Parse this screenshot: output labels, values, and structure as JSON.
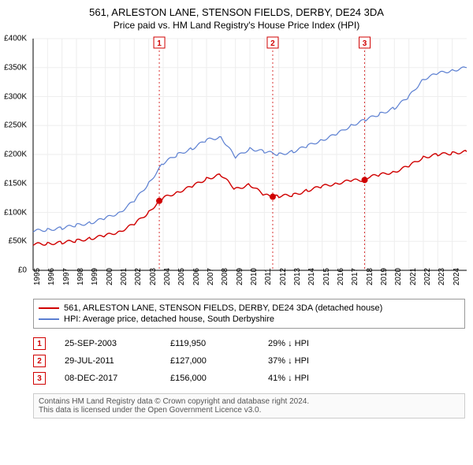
{
  "title_line1": "561, ARLESTON LANE, STENSON FIELDS, DERBY, DE24 3DA",
  "title_line2": "Price paid vs. HM Land Registry's House Price Index (HPI)",
  "chart": {
    "type": "line",
    "background_color": "#ffffff",
    "grid_color": "#eeeeee",
    "axis_color": "#000000",
    "x_min_year": 1995,
    "x_max_year": 2025,
    "x_tick_years": [
      1995,
      1996,
      1997,
      1998,
      1999,
      2000,
      2001,
      2002,
      2003,
      2004,
      2005,
      2006,
      2007,
      2008,
      2009,
      2010,
      2011,
      2012,
      2013,
      2014,
      2015,
      2016,
      2017,
      2018,
      2019,
      2020,
      2021,
      2022,
      2023,
      2024
    ],
    "y_min": 0,
    "y_max": 400000,
    "y_tick_step": 50000,
    "y_tick_labels": [
      "£0",
      "£50K",
      "£100K",
      "£150K",
      "£200K",
      "£250K",
      "£300K",
      "£350K",
      "£400K"
    ],
    "series": [
      {
        "name": "hpi",
        "label": "HPI: Average price, detached house, South Derbyshire",
        "color": "#5b7fd1",
        "line_width": 1.2,
        "data": [
          [
            1995,
            68000
          ],
          [
            1996,
            70000
          ],
          [
            1997,
            73000
          ],
          [
            1998,
            78000
          ],
          [
            1999,
            82000
          ],
          [
            2000,
            90000
          ],
          [
            2001,
            100000
          ],
          [
            2002,
            120000
          ],
          [
            2003,
            150000
          ],
          [
            2004,
            185000
          ],
          [
            2005,
            200000
          ],
          [
            2006,
            210000
          ],
          [
            2007,
            225000
          ],
          [
            2008,
            230000
          ],
          [
            2009,
            195000
          ],
          [
            2010,
            210000
          ],
          [
            2011,
            205000
          ],
          [
            2012,
            200000
          ],
          [
            2013,
            205000
          ],
          [
            2014,
            215000
          ],
          [
            2015,
            225000
          ],
          [
            2016,
            235000
          ],
          [
            2017,
            250000
          ],
          [
            2018,
            260000
          ],
          [
            2019,
            270000
          ],
          [
            2020,
            280000
          ],
          [
            2021,
            300000
          ],
          [
            2022,
            330000
          ],
          [
            2023,
            340000
          ],
          [
            2024,
            345000
          ],
          [
            2025,
            350000
          ]
        ]
      },
      {
        "name": "property",
        "label": "561, ARLESTON LANE, STENSON FIELDS, DERBY, DE24 3DA (detached house)",
        "color": "#d00000",
        "line_width": 1.4,
        "data": [
          [
            1995,
            45000
          ],
          [
            1996,
            46000
          ],
          [
            1997,
            48000
          ],
          [
            1998,
            51000
          ],
          [
            1999,
            55000
          ],
          [
            2000,
            60000
          ],
          [
            2001,
            67000
          ],
          [
            2002,
            80000
          ],
          [
            2003,
            100000
          ],
          [
            2003.73,
            119950
          ],
          [
            2004,
            125000
          ],
          [
            2005,
            135000
          ],
          [
            2006,
            145000
          ],
          [
            2007,
            158000
          ],
          [
            2008,
            165000
          ],
          [
            2009,
            140000
          ],
          [
            2010,
            148000
          ],
          [
            2011,
            130000
          ],
          [
            2011.58,
            127000
          ],
          [
            2012,
            128000
          ],
          [
            2013,
            130000
          ],
          [
            2014,
            138000
          ],
          [
            2015,
            145000
          ],
          [
            2016,
            150000
          ],
          [
            2017,
            155000
          ],
          [
            2017.94,
            156000
          ],
          [
            2018,
            160000
          ],
          [
            2019,
            165000
          ],
          [
            2020,
            170000
          ],
          [
            2021,
            180000
          ],
          [
            2022,
            195000
          ],
          [
            2023,
            200000
          ],
          [
            2024,
            202000
          ],
          [
            2025,
            205000
          ]
        ]
      }
    ],
    "markers": [
      {
        "n": "1",
        "year": 2003.73,
        "value": 119950,
        "color": "#d00000"
      },
      {
        "n": "2",
        "year": 2011.58,
        "value": 127000,
        "color": "#d00000"
      },
      {
        "n": "3",
        "year": 2017.94,
        "value": 156000,
        "color": "#d00000"
      }
    ]
  },
  "legend": {
    "items": [
      {
        "color": "#d00000",
        "text": "561, ARLESTON LANE, STENSON FIELDS, DERBY, DE24 3DA (detached house)"
      },
      {
        "color": "#5b7fd1",
        "text": "HPI: Average price, detached house, South Derbyshire"
      }
    ]
  },
  "marker_rows": [
    {
      "n": "1",
      "color": "#d00000",
      "date": "25-SEP-2003",
      "price": "£119,950",
      "hpi": "29% ↓ HPI"
    },
    {
      "n": "2",
      "color": "#d00000",
      "date": "29-JUL-2011",
      "price": "£127,000",
      "hpi": "37% ↓ HPI"
    },
    {
      "n": "3",
      "color": "#d00000",
      "date": "08-DEC-2017",
      "price": "£156,000",
      "hpi": "41% ↓ HPI"
    }
  ],
  "footer_line1": "Contains HM Land Registry data © Crown copyright and database right 2024.",
  "footer_line2": "This data is licensed under the Open Government Licence v3.0."
}
